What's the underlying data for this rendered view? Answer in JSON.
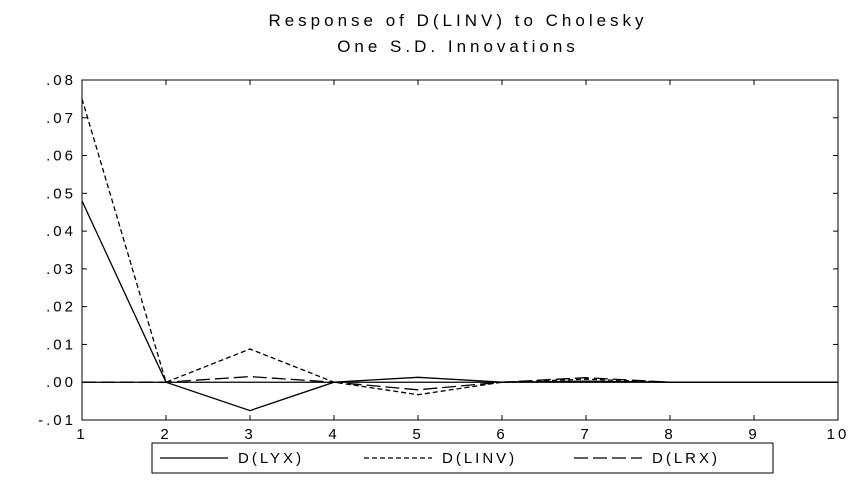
{
  "chart_data": {
    "type": "line",
    "title": "Response of D(LINV) to Cholesky",
    "subtitle": "One S.D. Innovations",
    "xlabel": "",
    "ylabel": "",
    "x": [
      1,
      2,
      3,
      4,
      5,
      6,
      7,
      8,
      9,
      10
    ],
    "xticks": [
      "1",
      "2",
      "3",
      "4",
      "5",
      "6",
      "7",
      "8",
      "9",
      "10"
    ],
    "ylim": [
      -0.01,
      0.08
    ],
    "yticks": [
      -0.01,
      0.0,
      0.01,
      0.02,
      0.03,
      0.04,
      0.05,
      0.06,
      0.07,
      0.08
    ],
    "ytick_labels": [
      "-.01",
      ".00",
      ".01",
      ".02",
      ".03",
      ".04",
      ".05",
      ".06",
      ".07",
      ".08"
    ],
    "zero_line": true,
    "grid": false,
    "legend_position": "bottom",
    "series": [
      {
        "name": "D(LYX)",
        "style": "solid",
        "values": [
          0.048,
          0.0,
          -0.0075,
          0.0,
          0.0013,
          0.0,
          0.0003,
          0.0,
          0.0,
          0.0
        ]
      },
      {
        "name": "D(LINV)",
        "style": "short-dash",
        "values": [
          0.075,
          0.0,
          0.0088,
          0.0,
          -0.0033,
          0.0,
          0.0008,
          0.0,
          0.0,
          0.0
        ]
      },
      {
        "name": "D(LRX)",
        "style": "long-dash",
        "values": [
          0.0,
          0.0,
          0.0015,
          0.0,
          -0.002,
          0.0,
          0.0012,
          0.0,
          0.0,
          0.0
        ]
      }
    ],
    "colors": {
      "line": "#000000",
      "background": "#ffffff"
    }
  }
}
